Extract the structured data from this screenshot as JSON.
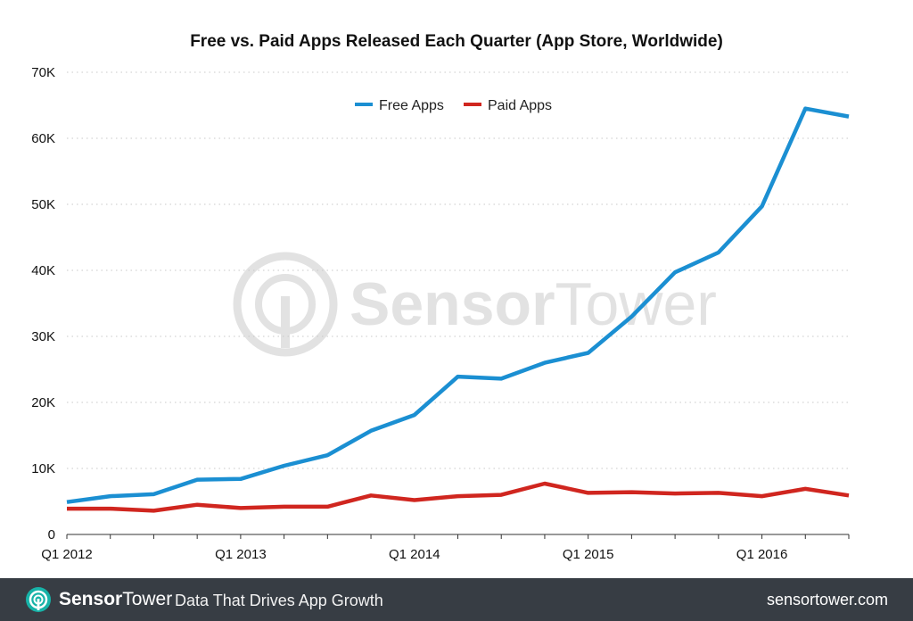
{
  "footer": {
    "brand_bold": "Sensor",
    "brand_light": "Tower",
    "tagline": "Data That Drives App Growth",
    "url": "sensortower.com"
  },
  "watermark": {
    "brand_bold": "Sensor",
    "brand_light": "Tower"
  },
  "colors": {
    "free": "#1b8fd2",
    "paid": "#d0261f",
    "grid": "#c8c8c8",
    "footer_bg": "#373d44",
    "logo_teal": "#17b3a8"
  },
  "chart_data": {
    "type": "line",
    "title": "Free vs. Paid Apps Released Each Quarter (App Store, Worldwide)",
    "xlabel": "",
    "ylabel": "",
    "x": [
      "Q1 2012",
      "Q2 2012",
      "Q3 2012",
      "Q4 2012",
      "Q1 2013",
      "Q2 2013",
      "Q3 2013",
      "Q4 2013",
      "Q1 2014",
      "Q2 2014",
      "Q3 2014",
      "Q4 2014",
      "Q1 2015",
      "Q2 2015",
      "Q3 2015",
      "Q4 2015",
      "Q1 2016",
      "Q2 2016",
      "Q3 2016"
    ],
    "x_tick_labels": [
      "Q1 2012",
      "Q1 2013",
      "Q1 2014",
      "Q1 2015",
      "Q1 2016"
    ],
    "y_ticks": [
      0,
      10000,
      20000,
      30000,
      40000,
      50000,
      60000,
      70000
    ],
    "y_tick_labels": [
      "0",
      "10K",
      "20K",
      "30K",
      "40K",
      "50K",
      "60K",
      "70K"
    ],
    "ylim": [
      0,
      70000
    ],
    "grid": "horizontal dotted",
    "legend_position": "top-center",
    "series": [
      {
        "name": "Free Apps",
        "values": [
          4900,
          5800,
          6100,
          8300,
          8400,
          10400,
          12000,
          15700,
          18100,
          23900,
          23600,
          26000,
          27500,
          33000,
          39700,
          42700,
          49700,
          64500,
          63300
        ]
      },
      {
        "name": "Paid Apps",
        "values": [
          3900,
          3900,
          3600,
          4500,
          4000,
          4200,
          4200,
          5900,
          5200,
          5800,
          6000,
          7700,
          6300,
          6400,
          6200,
          6300,
          5800,
          6900,
          5900
        ]
      }
    ]
  }
}
